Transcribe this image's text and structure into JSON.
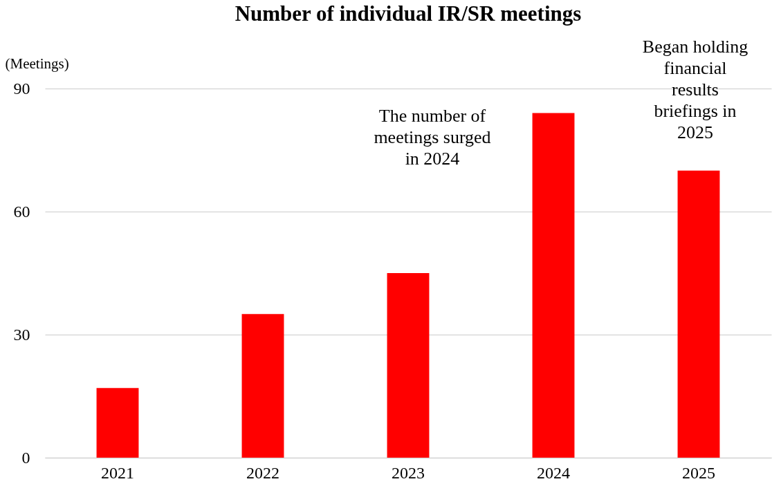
{
  "chart_data": {
    "type": "bar",
    "title": "Number of individual IR/SR meetings",
    "ylabel": "(Meetings)",
    "categories": [
      "2021",
      "2022",
      "2023",
      "2024",
      "2025"
    ],
    "values": [
      17,
      35,
      45,
      84,
      70
    ],
    "color": "#ff0000",
    "ylim": [
      0,
      90
    ],
    "yticks": [
      0,
      30,
      60,
      90
    ],
    "grid": "y",
    "annotations": [
      "The number of meetings surged in 2024",
      "Began holding financial results briefings in 2025"
    ]
  }
}
